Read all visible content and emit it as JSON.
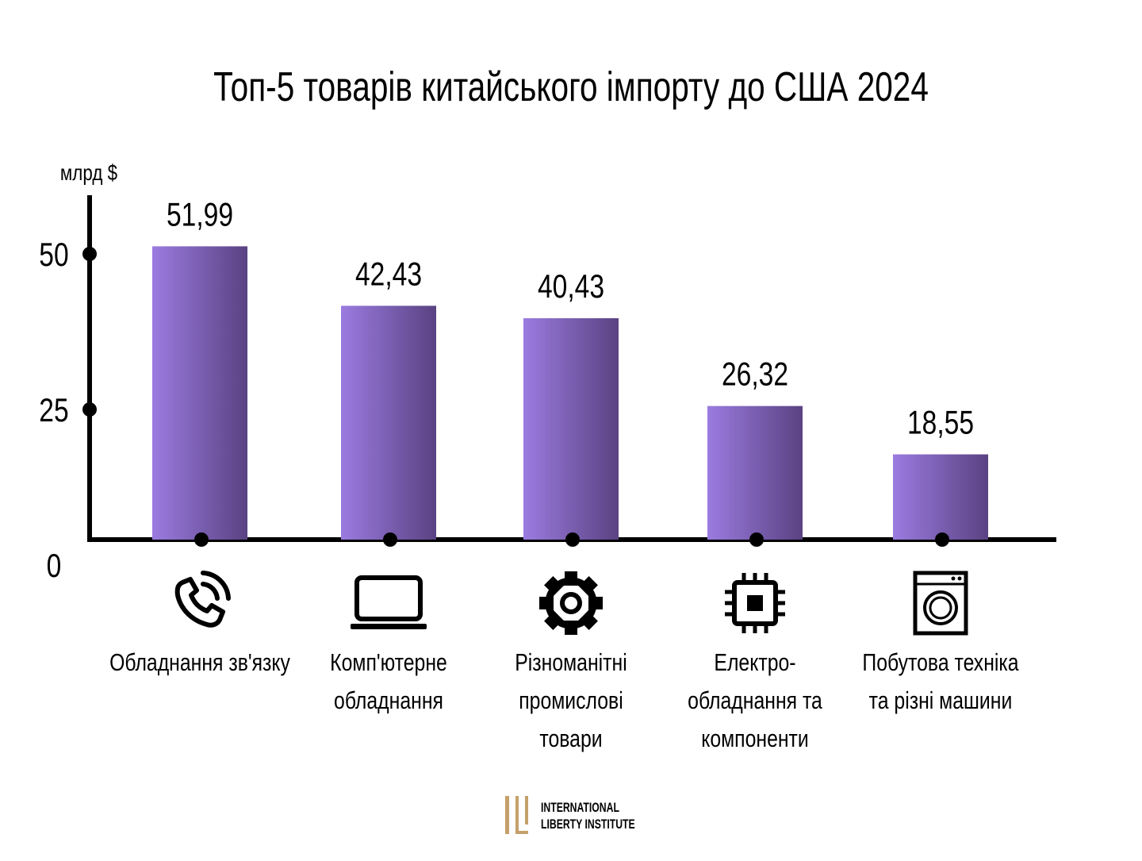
{
  "chart_data": {
    "type": "bar",
    "title": "Топ-5 товарів китайського імпорту до США 2024",
    "ylabel": "млрд $",
    "ylim": [
      0,
      55
    ],
    "yticks": [
      0,
      25,
      50
    ],
    "ytick_labels": [
      "0",
      "25",
      "50"
    ],
    "categories": [
      [
        "Обладнання зв'язку"
      ],
      [
        "Комп'ютерне",
        "обладнання"
      ],
      [
        "Різноманітні",
        "промислові",
        "товари"
      ],
      [
        "Електро-",
        "обладнання та",
        "компоненти"
      ],
      [
        "Побутова техніка",
        "та різні машини"
      ]
    ],
    "values": [
      51.99,
      42.43,
      40.43,
      26.32,
      18.55
    ],
    "value_labels": [
      "51,99",
      "42,43",
      "40,43",
      "26,32",
      "18,55"
    ],
    "icons": [
      "phone-icon",
      "laptop-icon",
      "gear-icon",
      "chip-icon",
      "washing-machine-icon"
    ],
    "grid": false,
    "colors": {
      "bar_start": "#9b7be0",
      "bar_end": "#5a4282",
      "axis": "#000000"
    }
  },
  "logo": {
    "line1": "International",
    "line2": "Liberty Institute",
    "color": "#c4a06a"
  }
}
